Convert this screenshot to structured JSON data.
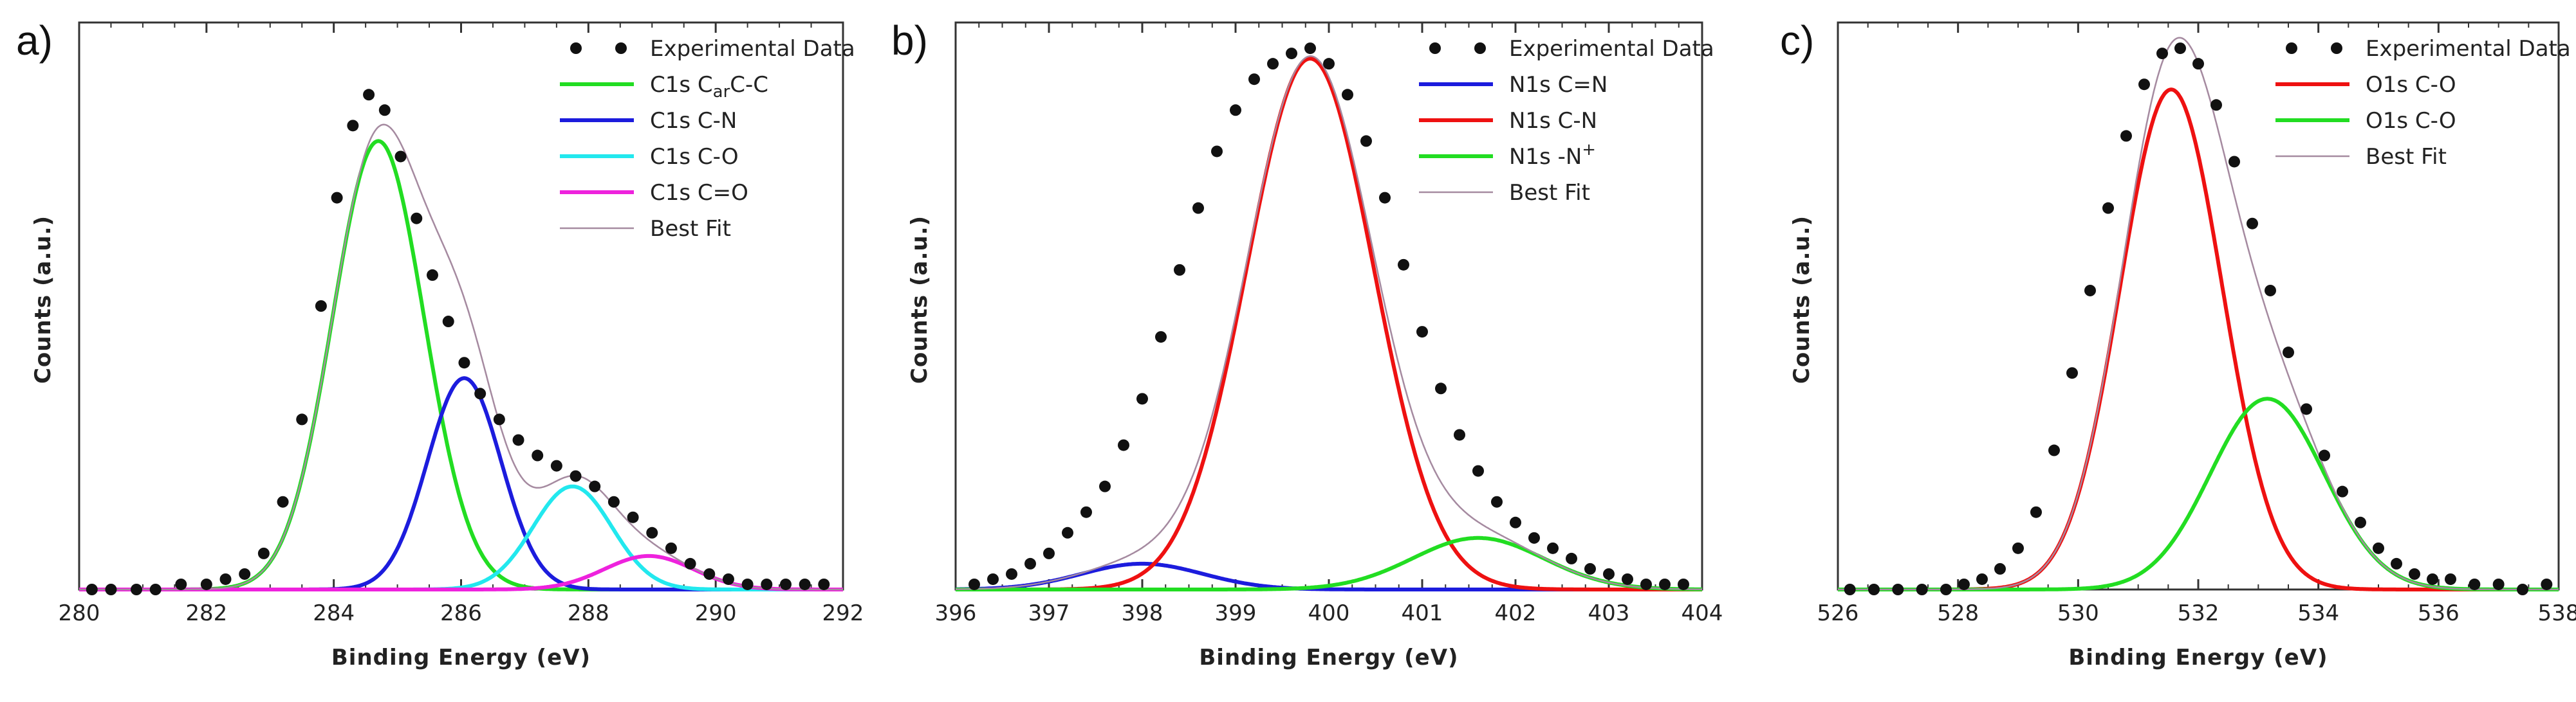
{
  "chart_data": [
    {
      "type": "line",
      "panel_label": "a)",
      "xlabel": "Binding Energy (eV)",
      "ylabel": "Counts (a.u.)",
      "xlim": [
        280,
        292
      ],
      "ylim": [
        0,
        1.1
      ],
      "x_ticks": [
        "280",
        "282",
        "284",
        "286",
        "288",
        "290",
        "292"
      ],
      "legend_position": "top-right",
      "experimental": {
        "name": "Experimental Data",
        "color": "#111111",
        "x": [
          280.2,
          280.5,
          280.9,
          281.2,
          281.6,
          282.0,
          282.3,
          282.6,
          282.9,
          283.2,
          283.5,
          283.8,
          284.05,
          284.3,
          284.55,
          284.8,
          285.05,
          285.3,
          285.55,
          285.8,
          286.05,
          286.3,
          286.6,
          286.9,
          287.2,
          287.5,
          287.8,
          288.1,
          288.4,
          288.7,
          289.0,
          289.3,
          289.6,
          289.9,
          290.2,
          290.5,
          290.8,
          291.1,
          291.4,
          291.7
        ],
        "y": [
          0.0,
          0.0,
          0.0,
          0.0,
          0.01,
          0.01,
          0.02,
          0.03,
          0.07,
          0.17,
          0.33,
          0.55,
          0.76,
          0.9,
          0.96,
          0.93,
          0.84,
          0.72,
          0.61,
          0.52,
          0.44,
          0.38,
          0.33,
          0.29,
          0.26,
          0.24,
          0.22,
          0.2,
          0.17,
          0.14,
          0.11,
          0.08,
          0.05,
          0.03,
          0.02,
          0.01,
          0.01,
          0.01,
          0.01,
          0.01
        ]
      },
      "series": [
        {
          "name": "C1s C",
          "name_sub": "ar",
          "name_tail": "C-C",
          "color": "#22dd22",
          "peak": {
            "center": 284.7,
            "height": 0.87,
            "sigma": 0.72
          }
        },
        {
          "name": "C1s C-N",
          "color": "#1c1cdd",
          "peak": {
            "center": 286.05,
            "height": 0.41,
            "sigma": 0.58
          }
        },
        {
          "name": "C1s C-O",
          "color": "#22e8ee",
          "peak": {
            "center": 287.75,
            "height": 0.2,
            "sigma": 0.62
          }
        },
        {
          "name": "C1s C=O",
          "color": "#ee22dd",
          "peak": {
            "center": 288.95,
            "height": 0.065,
            "sigma": 0.7
          }
        },
        {
          "name": "Best Fit",
          "color": "#a58aa0",
          "is_best_fit": true
        }
      ]
    },
    {
      "type": "line",
      "panel_label": "b)",
      "xlabel": "Binding Energy (eV)",
      "ylabel": "Counts (a.u.)",
      "xlim": [
        396,
        404
      ],
      "ylim": [
        0,
        1.1
      ],
      "x_ticks": [
        "396",
        "397",
        "398",
        "399",
        "400",
        "401",
        "402",
        "403",
        "404"
      ],
      "legend_position": "top-right",
      "experimental": {
        "name": "Experimental Data",
        "color": "#111111",
        "x": [
          396.2,
          396.4,
          396.6,
          396.8,
          397.0,
          397.2,
          397.4,
          397.6,
          397.8,
          398.0,
          398.2,
          398.4,
          398.6,
          398.8,
          399.0,
          399.2,
          399.4,
          399.6,
          399.8,
          400.0,
          400.2,
          400.4,
          400.6,
          400.8,
          401.0,
          401.2,
          401.4,
          401.6,
          401.8,
          402.0,
          402.2,
          402.4,
          402.6,
          402.8,
          403.0,
          403.2,
          403.4,
          403.6,
          403.8
        ],
        "y": [
          0.01,
          0.02,
          0.03,
          0.05,
          0.07,
          0.11,
          0.15,
          0.2,
          0.28,
          0.37,
          0.49,
          0.62,
          0.74,
          0.85,
          0.93,
          0.99,
          1.02,
          1.04,
          1.05,
          1.02,
          0.96,
          0.87,
          0.76,
          0.63,
          0.5,
          0.39,
          0.3,
          0.23,
          0.17,
          0.13,
          0.1,
          0.08,
          0.06,
          0.04,
          0.03,
          0.02,
          0.01,
          0.01,
          0.01
        ]
      },
      "series": [
        {
          "name": "N1s C=N",
          "color": "#1c1cdd",
          "peak": {
            "center": 398.0,
            "height": 0.05,
            "sigma": 0.65
          }
        },
        {
          "name": "N1s C-N",
          "color": "#ee1111",
          "peak": {
            "center": 399.8,
            "height": 1.03,
            "sigma": 0.68
          }
        },
        {
          "name": "N1s -N",
          "name_sup": "+",
          "color": "#22dd22",
          "peak": {
            "center": 401.6,
            "height": 0.1,
            "sigma": 0.7
          }
        },
        {
          "name": "Best Fit",
          "color": "#a58aa0",
          "is_best_fit": true
        }
      ]
    },
    {
      "type": "line",
      "panel_label": "c)",
      "xlabel": "Binding Energy (eV)",
      "ylabel": "Counts (a.u.)",
      "xlim": [
        526,
        538
      ],
      "ylim": [
        0,
        1.1
      ],
      "x_ticks": [
        "526",
        "528",
        "530",
        "532",
        "534",
        "536",
        "538"
      ],
      "legend_position": "top-right",
      "experimental": {
        "name": "Experimental Data",
        "color": "#111111",
        "x": [
          526.2,
          526.6,
          527.0,
          527.4,
          527.8,
          528.1,
          528.4,
          528.7,
          529.0,
          529.3,
          529.6,
          529.9,
          530.2,
          530.5,
          530.8,
          531.1,
          531.4,
          531.7,
          532.0,
          532.3,
          532.6,
          532.9,
          533.2,
          533.5,
          533.8,
          534.1,
          534.4,
          534.7,
          535.0,
          535.3,
          535.6,
          535.9,
          536.2,
          536.6,
          537.0,
          537.4,
          537.8
        ],
        "y": [
          0.0,
          0.0,
          0.0,
          0.0,
          0.0,
          0.01,
          0.02,
          0.04,
          0.08,
          0.15,
          0.27,
          0.42,
          0.58,
          0.74,
          0.88,
          0.98,
          1.04,
          1.05,
          1.02,
          0.94,
          0.83,
          0.71,
          0.58,
          0.46,
          0.35,
          0.26,
          0.19,
          0.13,
          0.08,
          0.05,
          0.03,
          0.02,
          0.02,
          0.01,
          0.01,
          0.0,
          0.01
        ]
      },
      "series": [
        {
          "name": "O1s C-O",
          "color": "#ee1111",
          "peak": {
            "center": 531.55,
            "height": 0.97,
            "sigma": 0.85
          }
        },
        {
          "name": "O1s C-O",
          "color": "#22dd22",
          "peak": {
            "center": 533.15,
            "height": 0.37,
            "sigma": 0.95
          }
        },
        {
          "name": "Best Fit",
          "color": "#a58aa0",
          "is_best_fit": true
        }
      ]
    }
  ]
}
